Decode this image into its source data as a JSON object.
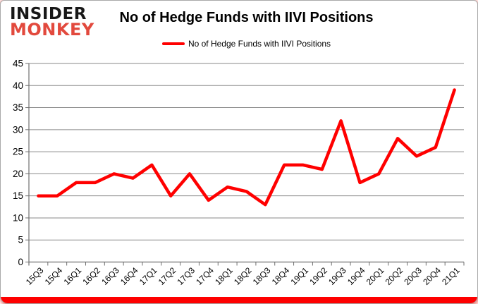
{
  "logo": {
    "line1": "INSIDER",
    "line2": "MONKEY"
  },
  "title": "No of Hedge Funds with IIVI Positions",
  "legend": {
    "label": "No of Hedge Funds with IIVI Positions"
  },
  "colors": {
    "series": "#ff0000",
    "gridline": "#8a8a8a",
    "axis": "#6e6e6e",
    "label": "#000000",
    "logo_black": "#181818",
    "logo_red": "#e2493d",
    "accent_bar": "#fe0000"
  },
  "chart_data": {
    "type": "line",
    "title": "No of Hedge Funds with IIVI Positions",
    "categories": [
      "15Q3",
      "15Q4",
      "16Q1",
      "16Q2",
      "16Q3",
      "16Q4",
      "17Q1",
      "17Q2",
      "17Q3",
      "17Q4",
      "18Q1",
      "18Q2",
      "18Q3",
      "18Q4",
      "19Q1",
      "19Q2",
      "19Q3",
      "19Q4",
      "20Q1",
      "20Q2",
      "20Q3",
      "20Q4",
      "21Q1"
    ],
    "series": [
      {
        "name": "No of Hedge Funds with IIVI Positions",
        "color": "#ff0000",
        "values": [
          15,
          15,
          18,
          18,
          20,
          19,
          22,
          15,
          20,
          14,
          17,
          16,
          13,
          22,
          22,
          21,
          32,
          18,
          20,
          28,
          24,
          26,
          39
        ]
      }
    ],
    "ylim": [
      0,
      45
    ],
    "yticks": [
      0,
      5,
      10,
      15,
      20,
      25,
      30,
      35,
      40,
      45
    ],
    "xlabel": "",
    "ylabel": "",
    "grid": true,
    "legend_position": "top"
  }
}
